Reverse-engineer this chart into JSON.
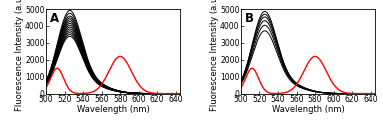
{
  "x_range": [
    500,
    645
  ],
  "y_range": [
    0,
    5000
  ],
  "yticks": [
    0,
    1000,
    2000,
    3000,
    4000,
    5000
  ],
  "xticks": [
    500,
    520,
    540,
    560,
    580,
    600,
    620,
    640
  ],
  "xlabel": "Wavelength (nm)",
  "ylabel": "Fluorescence Intensity (a.u.)",
  "panel_labels": [
    "A",
    "B"
  ],
  "black_peak_heights_A": [
    4500,
    4350,
    4200,
    4100,
    4000,
    3900,
    3800,
    3700,
    3600,
    3500,
    3400,
    3300,
    3200,
    3100
  ],
  "black_peak_heights_B": [
    4450,
    4300,
    4150,
    3950,
    3700,
    3400
  ],
  "background_color": "#ffffff",
  "tick_fontsize": 5.5,
  "label_fontsize": 6.0,
  "panel_label_fontsize": 8.5,
  "figsize": [
    3.83,
    1.3
  ],
  "dpi": 100
}
